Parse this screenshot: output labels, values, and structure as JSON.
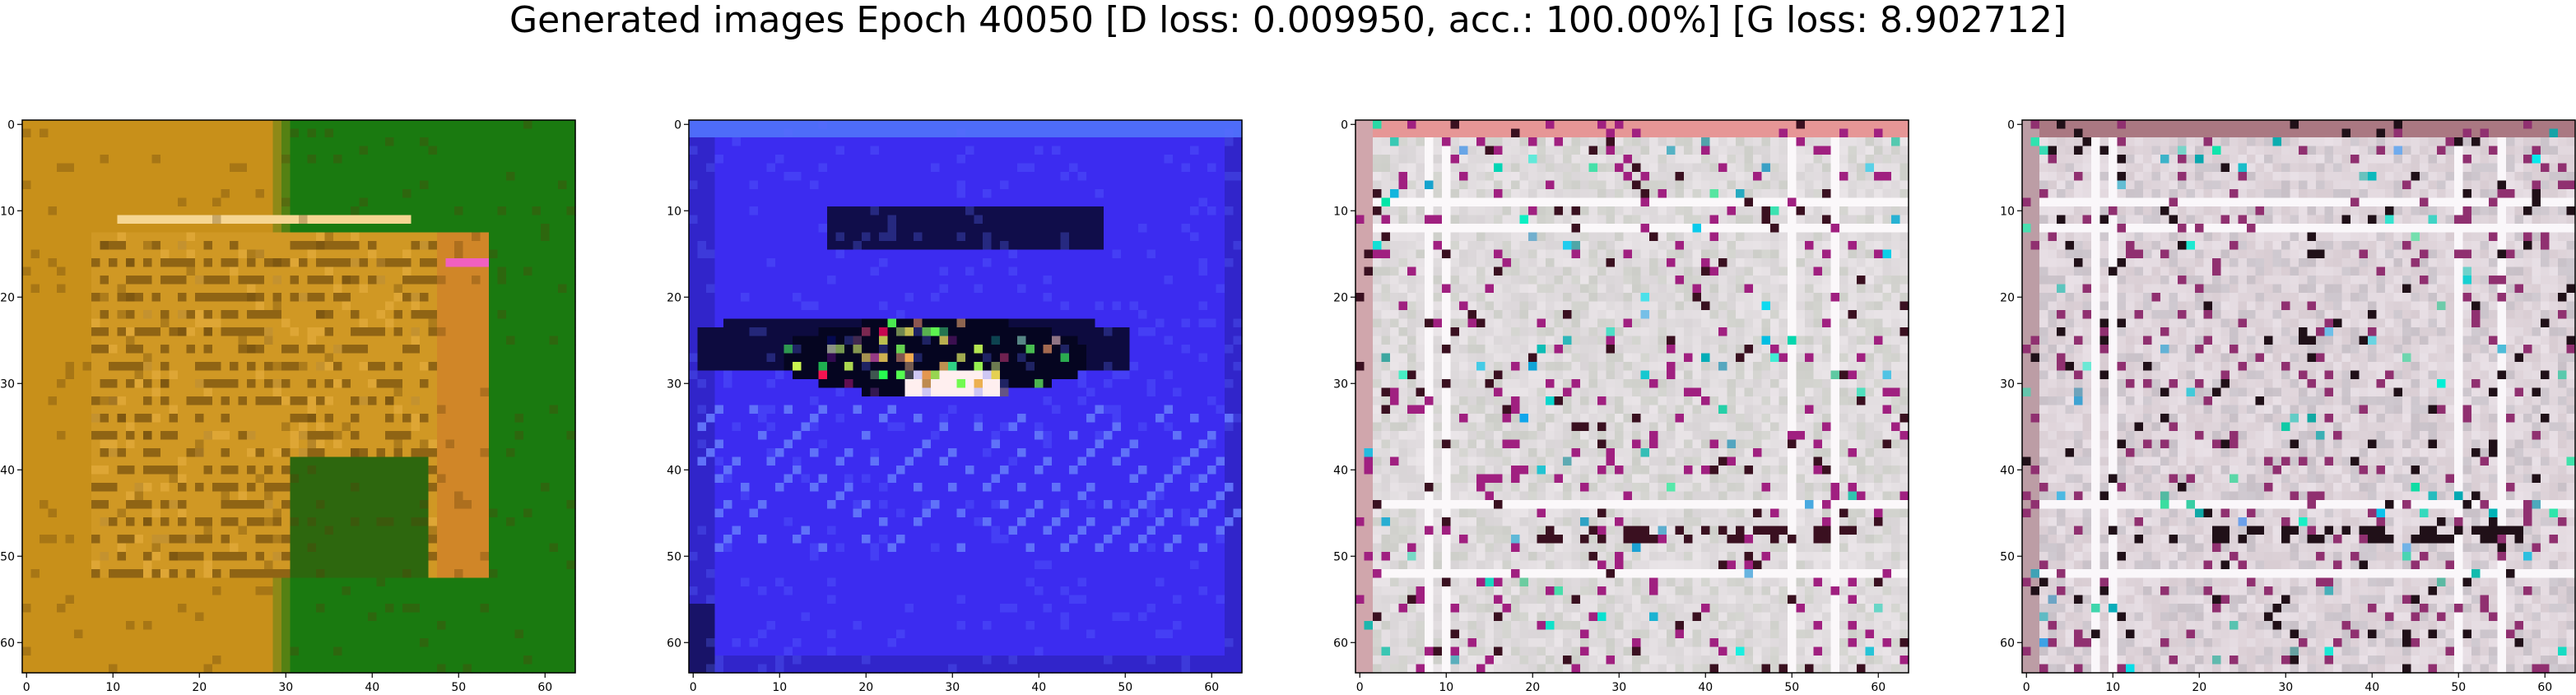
{
  "figure": {
    "title": "Generated images Epoch 40050 [D loss: 0.009950, acc.: 100.00%] [G loss: 8.902712]"
  },
  "panels": [
    {
      "name": "generated-image-1",
      "description_palette": "orange-green",
      "x_ticks": [
        "0",
        "10",
        "20",
        "30",
        "40",
        "50",
        "60"
      ],
      "y_ticks": [
        "0",
        "10",
        "20",
        "30",
        "40",
        "50",
        "60"
      ],
      "colors": {
        "base": "#c8901a",
        "secondary": "#1a7a10",
        "dark": "#5a3a08",
        "light": "#e8b040",
        "accent": "#f060c0"
      }
    },
    {
      "name": "generated-image-2",
      "description_palette": "blue-dark",
      "x_ticks": [
        "0",
        "10",
        "20",
        "30",
        "40",
        "50",
        "60"
      ],
      "y_ticks": [
        "0",
        "10",
        "20",
        "30",
        "40",
        "50",
        "60"
      ],
      "colors": {
        "base": "#3c2cf0",
        "secondary": "#2a20b0",
        "dark": "#050520",
        "light": "#5a6aff",
        "accent": "#ffffff"
      }
    },
    {
      "name": "generated-image-3",
      "description_palette": "pale-noise",
      "x_ticks": [
        "0",
        "10",
        "20",
        "30",
        "40",
        "50",
        "60"
      ],
      "y_ticks": [
        "0",
        "10",
        "20",
        "30",
        "40",
        "50",
        "60"
      ],
      "colors": {
        "base": "#d8d4d6",
        "secondary": "#c2c8bc",
        "dark": "#3a1020",
        "light": "#f6f0f4",
        "accent": "#a02080"
      }
    },
    {
      "name": "generated-image-4",
      "description_palette": "pale-mauve-noise",
      "x_ticks": [
        "0",
        "10",
        "20",
        "30",
        "40",
        "50",
        "60"
      ],
      "y_ticks": [
        "0",
        "10",
        "20",
        "30",
        "40",
        "50",
        "60"
      ],
      "colors": {
        "base": "#d8ccd2",
        "secondary": "#b8b4bc",
        "dark": "#201018",
        "light": "#f4eef4",
        "accent": "#903070"
      }
    }
  ]
}
